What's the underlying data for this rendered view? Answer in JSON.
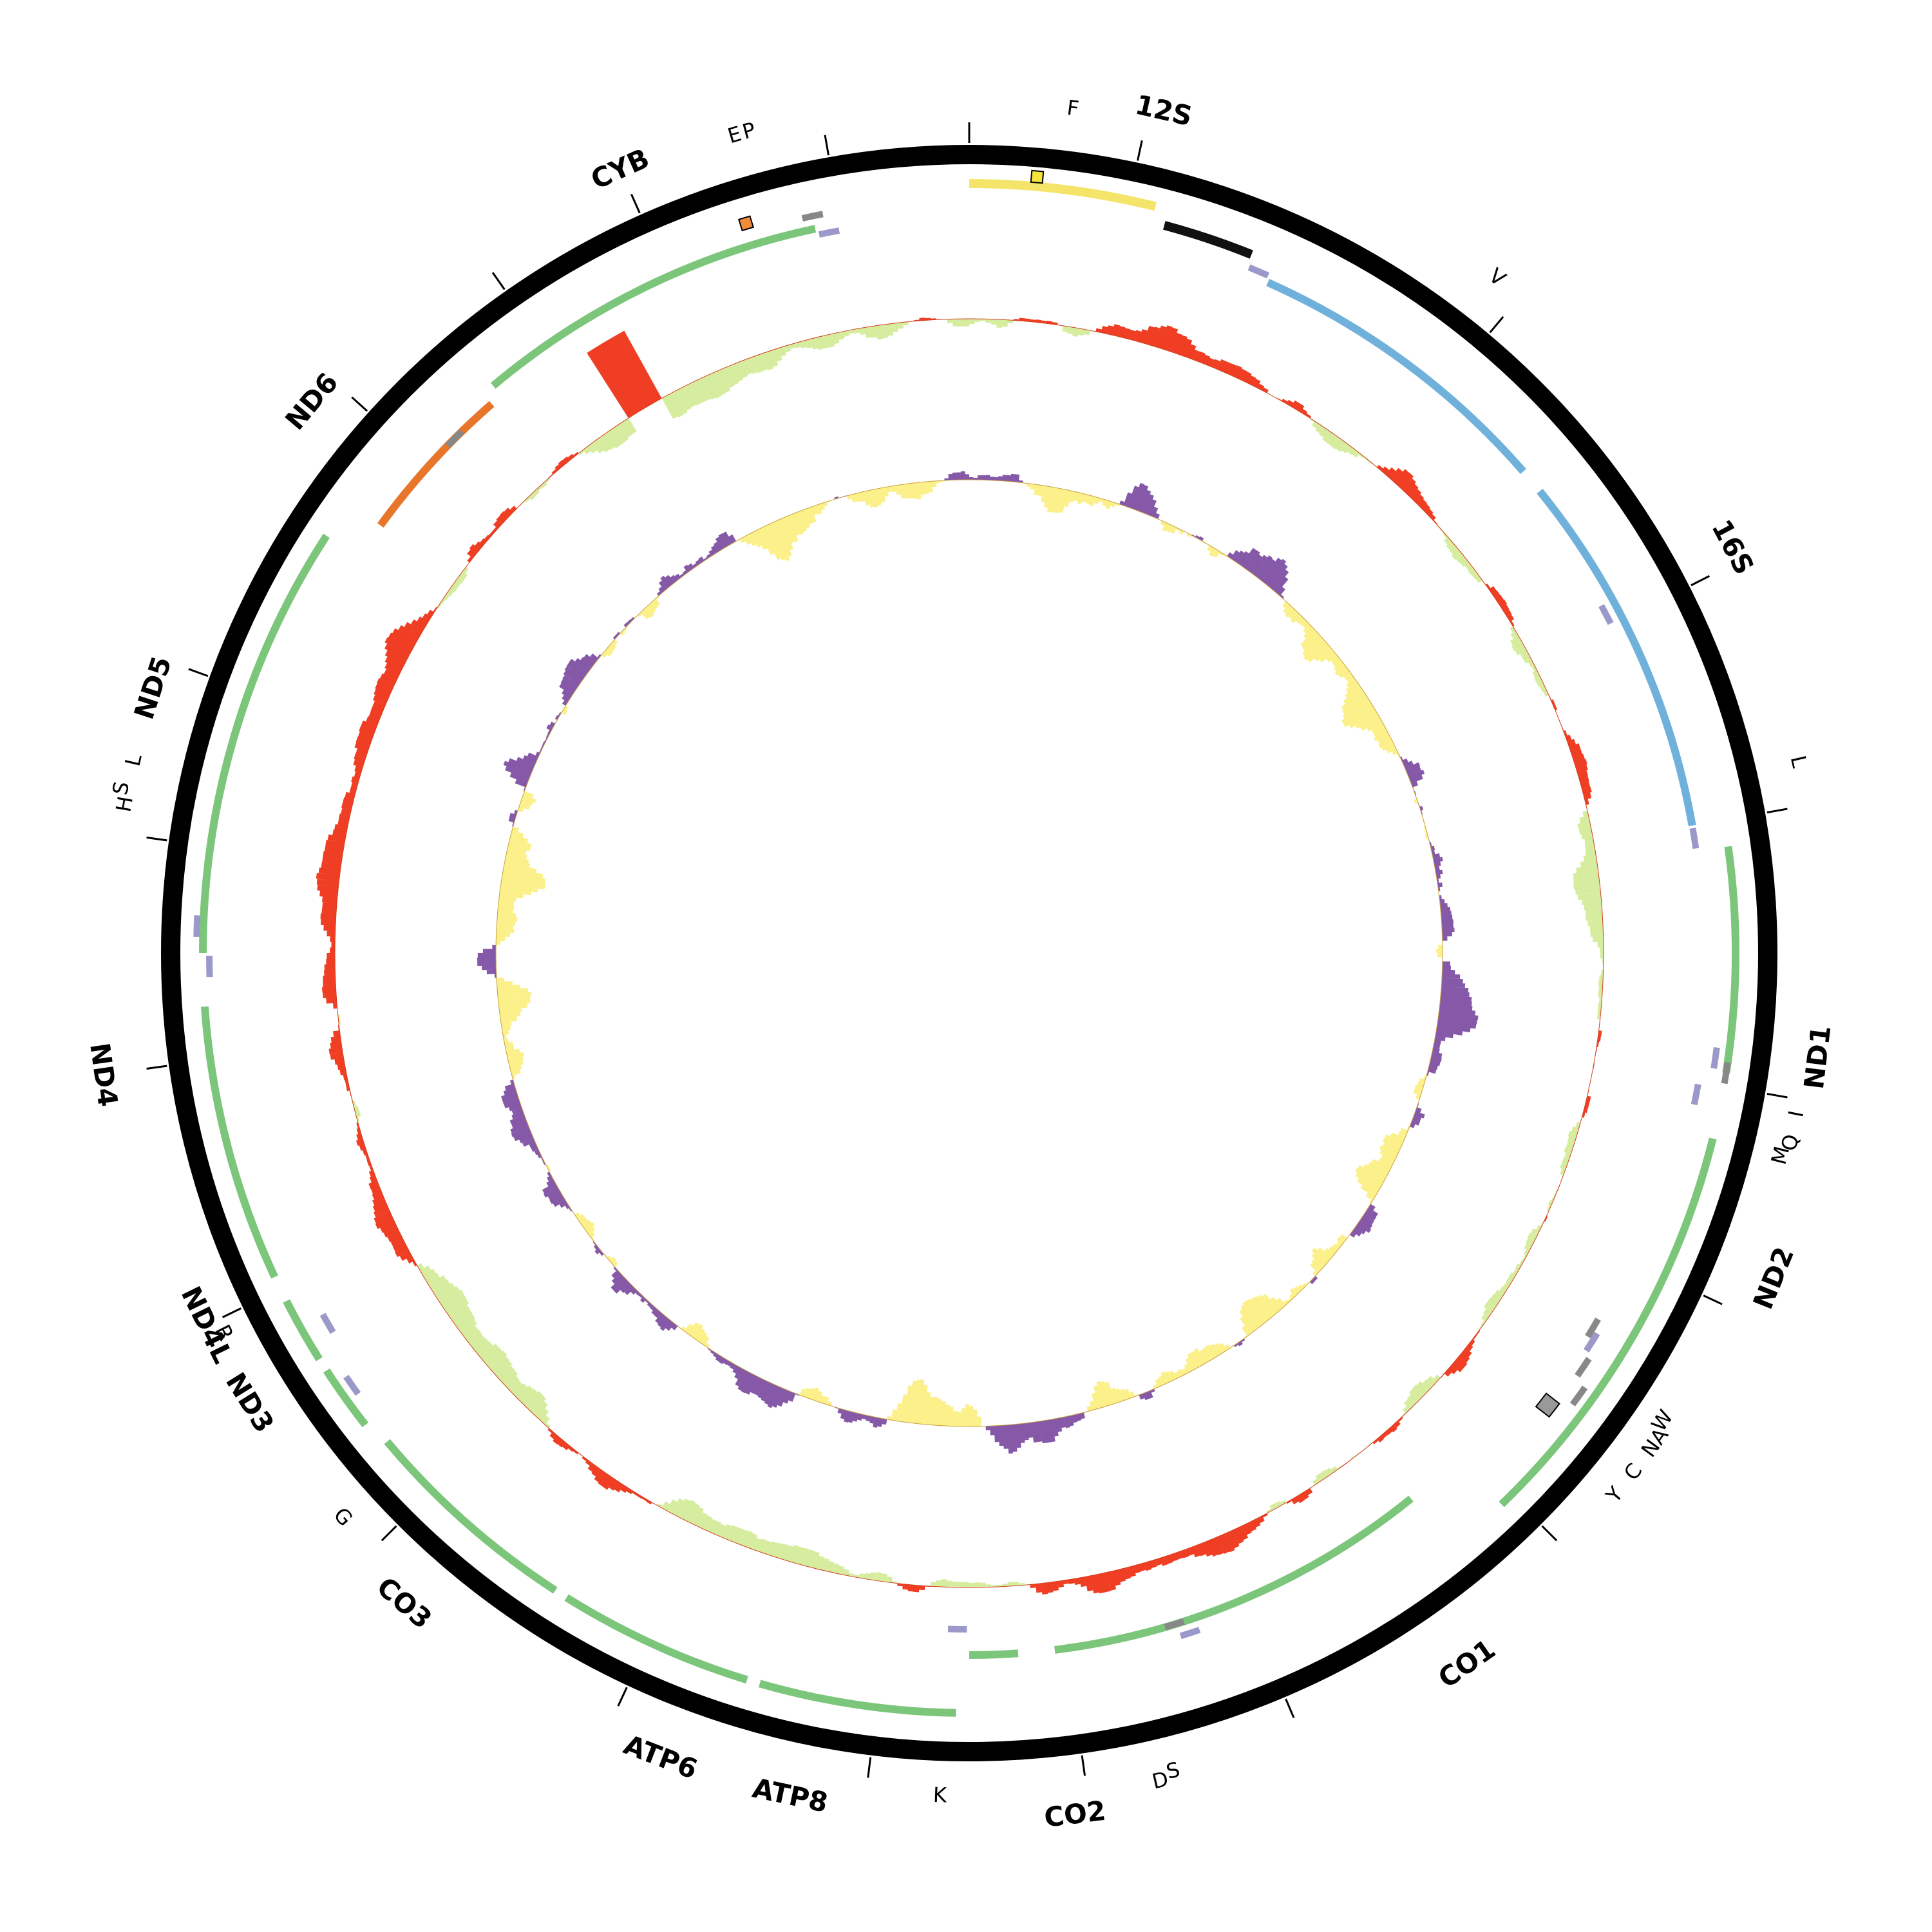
{
  "diagram": {
    "colors": {
      "backbone": "#000000",
      "protein_coding": "#7bc67a",
      "nd6": "#e8762a",
      "rrna": "#6fb1da",
      "trna": "#9b99c9",
      "trna_minus": "#888888",
      "control_region": "#f5e46a",
      "control_dark": "#111111",
      "gc_skew_pos": "#ef3e24",
      "gc_skew_neg": "#d6eda0",
      "gc_content_pos": "#8559a8",
      "gc_content_neg": "#fbf08a",
      "box_orange": "#f08b3a",
      "box_yellow": "#f5e33a",
      "box_grey": "#999999"
    },
    "genes": [
      {
        "label": "12S",
        "bold": true
      },
      {
        "label": "16S",
        "bold": true
      },
      {
        "label": "ND1",
        "bold": true
      },
      {
        "label": "ND2",
        "bold": true
      },
      {
        "label": "CO1",
        "bold": true
      },
      {
        "label": "CO2",
        "bold": true
      },
      {
        "label": "ATP8",
        "bold": true
      },
      {
        "label": "ATP6",
        "bold": true
      },
      {
        "label": "CO3",
        "bold": true
      },
      {
        "label": "ND3",
        "bold": true
      },
      {
        "label": "ND4L",
        "bold": true
      },
      {
        "label": "ND4",
        "bold": true
      },
      {
        "label": "ND5",
        "bold": true
      },
      {
        "label": "ND6",
        "bold": true
      },
      {
        "label": "CYB",
        "bold": true
      }
    ],
    "trna_labels": [
      "F",
      "V",
      "L",
      "I",
      "Q",
      "M",
      "W",
      "A",
      "N",
      "C",
      "Y",
      "S",
      "D",
      "K",
      "G",
      "R",
      "H",
      "S",
      "L",
      "E",
      "P"
    ]
  }
}
